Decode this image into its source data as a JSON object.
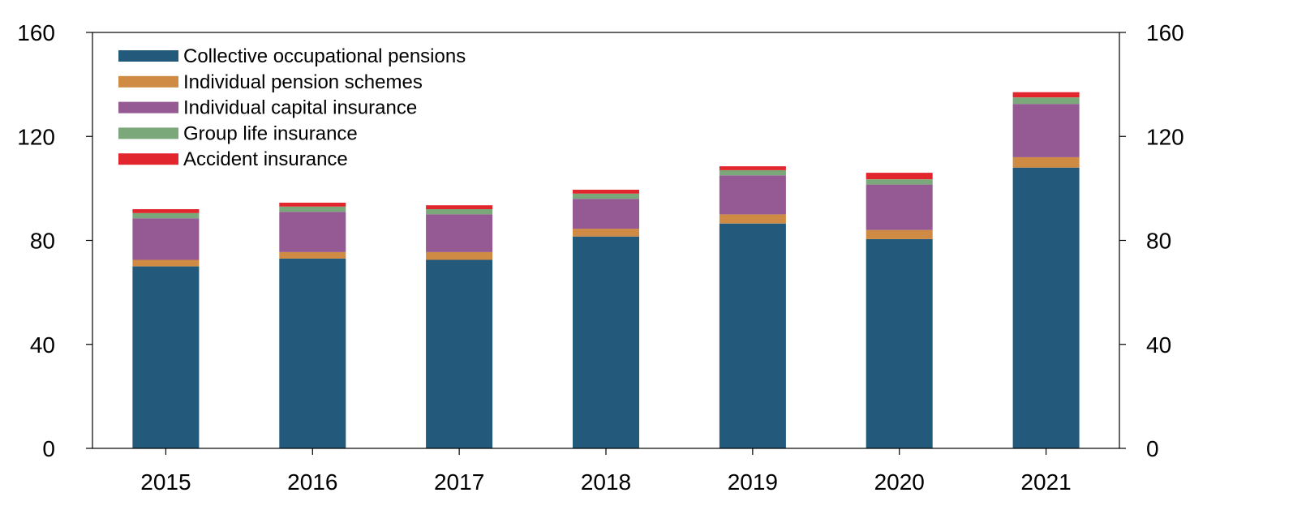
{
  "chart_data": {
    "type": "bar",
    "stacked": true,
    "categories": [
      "2015",
      "2016",
      "2017",
      "2018",
      "2019",
      "2020",
      "2021"
    ],
    "series": [
      {
        "name": "Collective occupational pensions",
        "color": "#23597a",
        "values": [
          70,
          73,
          72.5,
          81.5,
          86.5,
          80.5,
          108
        ]
      },
      {
        "name": "Individual pension schemes",
        "color": "#cf8a43",
        "values": [
          2.5,
          2.5,
          3,
          3,
          3.5,
          3.5,
          4
        ]
      },
      {
        "name": "Individual capital insurance",
        "color": "#955a93",
        "values": [
          16,
          15.5,
          14.5,
          11.5,
          15,
          17.5,
          20.5
        ]
      },
      {
        "name": "Group life insurance",
        "color": "#7aa87a",
        "values": [
          2,
          2,
          2,
          2,
          2,
          2,
          2.5
        ]
      },
      {
        "name": "Accident insurance",
        "color": "#e1262d",
        "values": [
          1.5,
          1.5,
          1.5,
          1.5,
          1.5,
          2.5,
          2
        ]
      }
    ],
    "ylim": [
      0,
      160
    ],
    "yticks": [
      0,
      40,
      80,
      120,
      160
    ],
    "left_axis_tick_labels": [
      "0",
      "40",
      "80",
      "120",
      "160"
    ],
    "right_axis_tick_labels": [
      "0",
      "40",
      "80",
      "120",
      "160"
    ],
    "legend_position": "top-left",
    "grid": false,
    "title": "",
    "xlabel": "",
    "ylabel": ""
  }
}
